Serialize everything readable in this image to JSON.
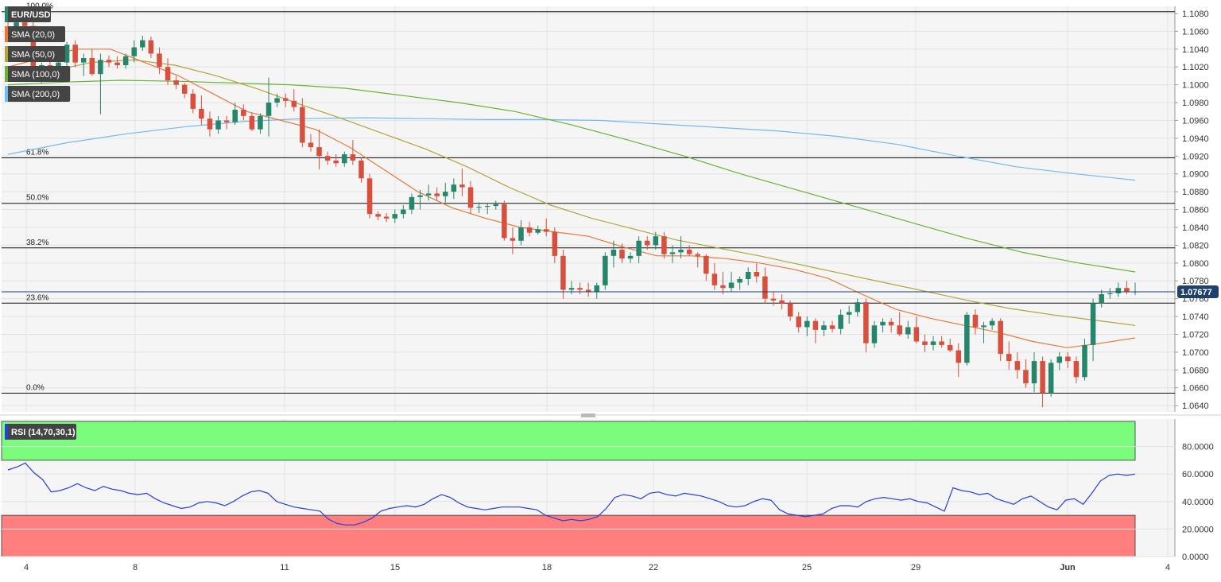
{
  "chart_data": {
    "type": "candlestick",
    "symbol": "EUR/USD",
    "x_labels": [
      "4",
      "8",
      "11",
      "15",
      "18",
      "22",
      "25",
      "29",
      "Jun",
      "4"
    ],
    "y_ticks": [
      "1.1080",
      "1.1060",
      "1.1040",
      "1.1020",
      "1.1000",
      "1.0980",
      "1.0960",
      "1.0940",
      "1.0920",
      "1.0900",
      "1.0880",
      "1.0860",
      "1.0840",
      "1.0820",
      "1.0800",
      "1.0780",
      "1.0760",
      "1.0740",
      "1.0720",
      "1.0700",
      "1.0680",
      "1.0660",
      "1.0640"
    ],
    "ylim": [
      1.0633,
      1.1088
    ],
    "last_price": "1.07677",
    "legend": [
      "EUR/USD",
      "SMA (20,0)",
      "SMA (50,0)",
      "SMA (100,0)",
      "SMA (200,0)"
    ],
    "fib_levels": [
      {
        "label": "100.0%",
        "price": 1.1082
      },
      {
        "label": "61.8%",
        "price": 1.0918
      },
      {
        "label": "50.0%",
        "price": 1.0867
      },
      {
        "label": "38.2%",
        "price": 1.0817
      },
      {
        "label": "23.6%",
        "price": 1.0755
      },
      {
        "label": "0.0%",
        "price": 1.0654
      }
    ],
    "candles": [
      [
        1.1065,
        1.1072,
        1.1055,
        1.1058
      ],
      [
        1.1058,
        1.1075,
        1.105,
        1.107
      ],
      [
        1.107,
        1.108,
        1.106,
        1.1066
      ],
      [
        1.1066,
        1.1072,
        1.1005,
        1.101
      ],
      [
        1.101,
        1.1025,
        1.1002,
        1.1022
      ],
      [
        1.1022,
        1.1035,
        1.1015,
        1.1018
      ],
      [
        1.1018,
        1.103,
        1.101,
        1.1025
      ],
      [
        1.1025,
        1.1048,
        1.102,
        1.1045
      ],
      [
        1.1045,
        1.105,
        1.102,
        1.1025
      ],
      [
        1.1025,
        1.1035,
        1.101,
        1.103
      ],
      [
        1.103,
        1.104,
        1.101,
        1.1012
      ],
      [
        1.1012,
        1.1035,
        1.0967,
        1.1028
      ],
      [
        1.1028,
        1.1033,
        1.102,
        1.1025
      ],
      [
        1.1025,
        1.1032,
        1.1018,
        1.1022
      ],
      [
        1.1022,
        1.1035,
        1.1018,
        1.1032
      ],
      [
        1.1032,
        1.105,
        1.1025,
        1.1042
      ],
      [
        1.1042,
        1.1055,
        1.1038,
        1.105
      ],
      [
        1.105,
        1.1054,
        1.103,
        1.1035
      ],
      [
        1.1035,
        1.1042,
        1.1012,
        1.102
      ],
      [
        1.102,
        1.103,
        1.1,
        1.1005
      ],
      [
        1.1005,
        1.101,
        1.0995,
        1.1
      ],
      [
        1.1,
        1.1002,
        1.0985,
        1.099
      ],
      [
        1.099,
        1.0995,
        1.0968,
        1.0973
      ],
      [
        1.0973,
        1.0988,
        1.0955,
        1.0962
      ],
      [
        1.0962,
        1.097,
        1.0942,
        1.095
      ],
      [
        1.095,
        1.0965,
        1.0945,
        1.096
      ],
      [
        1.096,
        1.0965,
        1.095,
        1.0958
      ],
      [
        1.0958,
        1.098,
        1.0955,
        1.0972
      ],
      [
        1.0972,
        1.0978,
        1.096,
        1.0965
      ],
      [
        1.0965,
        1.0968,
        1.0948,
        1.095
      ],
      [
        1.095,
        1.0968,
        1.0945,
        1.0965
      ],
      [
        1.0965,
        1.1008,
        1.0942,
        1.098
      ],
      [
        1.098,
        1.099,
        1.0975,
        1.0985
      ],
      [
        1.0985,
        1.099,
        1.0975,
        1.0982
      ],
      [
        1.0982,
        1.0995,
        1.097,
        1.0975
      ],
      [
        1.0975,
        1.0985,
        1.093,
        1.0935
      ],
      [
        1.0935,
        1.0945,
        1.0925,
        1.093
      ],
      [
        1.093,
        1.095,
        1.0905,
        1.092
      ],
      [
        1.092,
        1.0925,
        1.091,
        1.0915
      ],
      [
        1.0915,
        1.0922,
        1.0908,
        1.0912
      ],
      [
        1.0912,
        1.0925,
        1.0908,
        1.0922
      ],
      [
        1.0922,
        1.0938,
        1.091,
        1.0915
      ],
      [
        1.0915,
        1.0918,
        1.089,
        1.0895
      ],
      [
        1.0895,
        1.09,
        1.085,
        1.0855
      ],
      [
        1.0855,
        1.0858,
        1.0848,
        1.0852
      ],
      [
        1.0852,
        1.0856,
        1.0846,
        1.085
      ],
      [
        1.085,
        1.086,
        1.0845,
        1.0855
      ],
      [
        1.0855,
        1.0865,
        1.085,
        1.086
      ],
      [
        1.086,
        1.0878,
        1.0855,
        1.0874
      ],
      [
        1.0874,
        1.0882,
        1.086,
        1.0876
      ],
      [
        1.0876,
        1.0888,
        1.087,
        1.0878
      ],
      [
        1.0878,
        1.0885,
        1.087,
        1.0875
      ],
      [
        1.0875,
        1.089,
        1.0868,
        1.088
      ],
      [
        1.088,
        1.0895,
        1.0872,
        1.0888
      ],
      [
        1.0888,
        1.0906,
        1.0875,
        1.0885
      ],
      [
        1.0885,
        1.0892,
        1.0855,
        1.0862
      ],
      [
        1.0862,
        1.0868,
        1.0856,
        1.0863
      ],
      [
        1.0863,
        1.0867,
        1.0855,
        1.0864
      ],
      [
        1.0864,
        1.087,
        1.086,
        1.0866
      ],
      [
        1.0866,
        1.087,
        1.0825,
        1.0828
      ],
      [
        1.0828,
        1.084,
        1.081,
        1.0825
      ],
      [
        1.0825,
        1.0848,
        1.082,
        1.084
      ],
      [
        1.084,
        1.0846,
        1.083,
        1.0834
      ],
      [
        1.0834,
        1.0842,
        1.0832,
        1.0838
      ],
      [
        1.0838,
        1.085,
        1.083,
        1.0835
      ],
      [
        1.0835,
        1.084,
        1.08,
        1.0808
      ],
      [
        1.0808,
        1.0815,
        1.076,
        1.077
      ],
      [
        1.077,
        1.078,
        1.0765,
        1.0772
      ],
      [
        1.0772,
        1.0778,
        1.0765,
        1.077
      ],
      [
        1.077,
        1.0778,
        1.0762,
        1.0768
      ],
      [
        1.0768,
        1.0778,
        1.076,
        1.0775
      ],
      [
        1.0775,
        1.0812,
        1.077,
        1.0808
      ],
      [
        1.0808,
        1.0825,
        1.0795,
        1.0815
      ],
      [
        1.0815,
        1.0822,
        1.08,
        1.0805
      ],
      [
        1.0805,
        1.0812,
        1.08,
        1.0808
      ],
      [
        1.0808,
        1.083,
        1.08,
        1.0825
      ],
      [
        1.0825,
        1.083,
        1.0815,
        1.082
      ],
      [
        1.082,
        1.0835,
        1.0815,
        1.083
      ],
      [
        1.083,
        1.0835,
        1.0805,
        1.081
      ],
      [
        1.081,
        1.082,
        1.08,
        1.0812
      ],
      [
        1.0812,
        1.083,
        1.0805,
        1.0815
      ],
      [
        1.0815,
        1.082,
        1.0808,
        1.081
      ],
      [
        1.081,
        1.0812,
        1.0795,
        1.0808
      ],
      [
        1.0808,
        1.081,
        1.078,
        1.0788
      ],
      [
        1.0788,
        1.08,
        1.077,
        1.0775
      ],
      [
        1.0775,
        1.079,
        1.0765,
        1.0772
      ],
      [
        1.0772,
        1.079,
        1.0768,
        1.0778
      ],
      [
        1.0778,
        1.0785,
        1.077,
        1.0782
      ],
      [
        1.0782,
        1.0795,
        1.0775,
        1.079
      ],
      [
        1.079,
        1.08,
        1.0778,
        1.0785
      ],
      [
        1.0785,
        1.0795,
        1.0755,
        1.076
      ],
      [
        1.076,
        1.0768,
        1.0752,
        1.0758
      ],
      [
        1.0758,
        1.0765,
        1.0748,
        1.0755
      ],
      [
        1.0755,
        1.0758,
        1.0735,
        1.074
      ],
      [
        1.074,
        1.0745,
        1.0722,
        1.0728
      ],
      [
        1.0728,
        1.074,
        1.0718,
        1.0735
      ],
      [
        1.0735,
        1.0738,
        1.071,
        1.0725
      ],
      [
        1.0725,
        1.0735,
        1.0718,
        1.073
      ],
      [
        1.073,
        1.0735,
        1.0722,
        1.0726
      ],
      [
        1.0726,
        1.0748,
        1.072,
        1.0742
      ],
      [
        1.0742,
        1.0752,
        1.0732,
        1.0745
      ],
      [
        1.0745,
        1.076,
        1.074,
        1.0756
      ],
      [
        1.0756,
        1.076,
        1.07,
        1.071
      ],
      [
        1.071,
        1.0735,
        1.0705,
        1.073
      ],
      [
        1.073,
        1.0738,
        1.0722,
        1.0734
      ],
      [
        1.0734,
        1.0738,
        1.0722,
        1.073
      ],
      [
        1.073,
        1.0745,
        1.0718,
        1.072
      ],
      [
        1.072,
        1.0735,
        1.0715,
        1.0728
      ],
      [
        1.0728,
        1.074,
        1.071,
        1.0712
      ],
      [
        1.0712,
        1.072,
        1.07,
        1.0708
      ],
      [
        1.0708,
        1.0718,
        1.0702,
        1.0712
      ],
      [
        1.0712,
        1.0718,
        1.0705,
        1.0708
      ],
      [
        1.0708,
        1.0715,
        1.07,
        1.0702
      ],
      [
        1.0702,
        1.071,
        1.0672,
        1.0688
      ],
      [
        1.0688,
        1.0745,
        1.0685,
        1.0742
      ],
      [
        1.0742,
        1.0748,
        1.072,
        1.0728
      ],
      [
        1.0728,
        1.0734,
        1.071,
        1.073
      ],
      [
        1.073,
        1.0738,
        1.0725,
        1.0735
      ],
      [
        1.0735,
        1.0738,
        1.069,
        1.0698
      ],
      [
        1.0698,
        1.0712,
        1.068,
        1.069
      ],
      [
        1.069,
        1.07,
        1.067,
        1.068
      ],
      [
        1.068,
        1.0692,
        1.066,
        1.0665
      ],
      [
        1.0665,
        1.07,
        1.0655,
        1.069
      ],
      [
        1.069,
        1.0695,
        1.0638,
        1.0654
      ],
      [
        1.0654,
        1.0692,
        1.065,
        1.0688
      ],
      [
        1.0688,
        1.07,
        1.068,
        1.0695
      ],
      [
        1.0695,
        1.07,
        1.0682,
        1.069
      ],
      [
        1.069,
        1.0695,
        1.0665,
        1.0672
      ],
      [
        1.0672,
        1.0715,
        1.0668,
        1.0708
      ],
      [
        1.0708,
        1.076,
        1.069,
        1.0755
      ],
      [
        1.0755,
        1.077,
        1.075,
        1.0765
      ],
      [
        1.0765,
        1.0772,
        1.076,
        1.0766
      ],
      [
        1.0766,
        1.0778,
        1.0762,
        1.0772
      ],
      [
        1.0772,
        1.078,
        1.0765,
        1.0768
      ],
      [
        1.0768,
        1.0778,
        1.0764,
        1.0768
      ]
    ],
    "sma20": [
      1.102,
      1.103,
      1.104,
      1.104,
      1.1025,
      1.101,
      1.099,
      1.097,
      1.096,
      1.095,
      1.093,
      1.0905,
      1.088,
      1.0862,
      1.085,
      1.084,
      1.0835,
      1.083,
      1.0818,
      1.0808,
      1.0808,
      1.0805,
      1.08,
      1.0793,
      1.0783,
      1.0765,
      1.0748,
      1.0738,
      1.073,
      1.0722,
      1.0712,
      1.0705,
      1.071,
      1.0716
    ],
    "sma50": [
      1.1005,
      1.1015,
      1.1025,
      1.1028,
      1.1022,
      1.101,
      1.0995,
      1.0978,
      1.0962,
      1.0945,
      1.0928,
      1.0908,
      1.0885,
      1.0865,
      1.085,
      1.0838,
      1.0826,
      1.0817,
      1.0808,
      1.0798,
      1.0788,
      1.0778,
      1.0768,
      1.0758,
      1.0749,
      1.0742,
      1.0736,
      1.073
    ],
    "sma100": [
      1.1,
      1.1003,
      1.1005,
      1.1004,
      1.1002,
      1.1,
      1.0996,
      1.0988,
      1.098,
      1.097,
      1.0955,
      1.0938,
      1.092,
      1.09,
      1.0882,
      1.0864,
      1.0846,
      1.0828,
      1.0812,
      1.08,
      1.079
    ],
    "sma200": [
      1.0922,
      1.0935,
      1.0945,
      1.0953,
      1.0959,
      1.0962,
      1.0963,
      1.0962,
      1.0961,
      1.0961,
      1.096,
      1.0956,
      1.0952,
      1.0948,
      1.0942,
      1.0933,
      1.092,
      1.0908,
      1.09,
      1.0893
    ],
    "rsi_label": "RSI (14,70,30,1)",
    "rsi_ticks": [
      "80.0000",
      "60.0000",
      "40.0000",
      "20.0000",
      "0.0000"
    ],
    "rsi_ylim": [
      0,
      100
    ],
    "rsi_overbought": 70,
    "rsi_oversold": 30,
    "rsi": [
      63,
      65,
      68,
      61,
      56,
      47,
      48,
      50,
      53,
      50,
      48,
      51,
      49,
      48,
      46,
      45,
      46,
      42,
      39,
      37,
      35,
      36,
      39,
      40,
      39,
      37,
      40,
      44,
      47,
      48,
      46,
      40,
      38,
      36,
      35,
      34,
      33,
      27,
      24,
      23,
      23,
      25,
      28,
      33,
      35,
      36,
      37,
      36,
      38,
      42,
      45,
      43,
      39,
      36,
      35,
      34,
      35,
      36,
      36,
      36,
      35,
      34,
      30,
      28,
      26,
      27,
      26,
      27,
      29,
      35,
      43,
      45,
      44,
      42,
      46,
      47,
      45,
      44,
      46,
      45,
      44,
      42,
      40,
      37,
      36,
      37,
      40,
      42,
      41,
      34,
      31,
      30,
      29,
      30,
      31,
      35,
      37,
      37,
      36,
      40,
      42,
      43,
      42,
      41,
      42,
      40,
      39,
      36,
      33,
      50,
      48,
      47,
      45,
      46,
      42,
      40,
      38,
      42,
      44,
      40,
      36,
      34,
      41,
      42,
      38,
      46,
      55,
      59,
      60,
      59,
      60
    ]
  }
}
